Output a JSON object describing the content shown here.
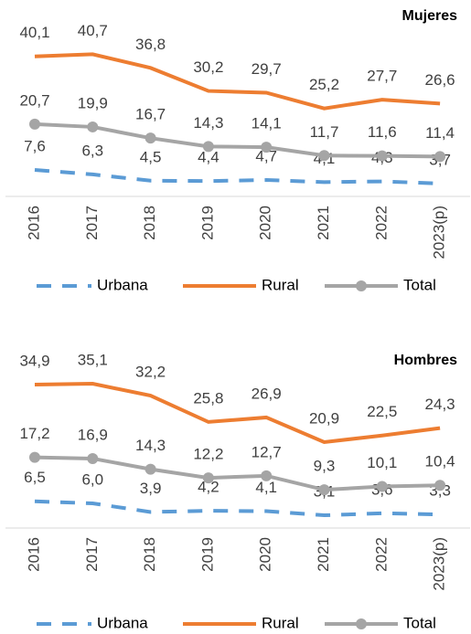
{
  "chart_data": [
    {
      "type": "line",
      "title": "Mujeres",
      "categories": [
        "2016",
        "2017",
        "2018",
        "2019",
        "2020",
        "2021",
        "2022",
        "2023(p)"
      ],
      "ylim": [
        0,
        45
      ],
      "legend": "bottom",
      "series": [
        {
          "name": "Urbana",
          "color": "#5b9bd5",
          "dashed": true,
          "values": [
            7.6,
            6.3,
            4.5,
            4.4,
            4.7,
            4.1,
            4.3,
            3.7
          ],
          "value_labels": [
            "7,6",
            "6,3",
            "4,5",
            "4,4",
            "4,7",
            "4,1",
            "4,3",
            "3,7"
          ]
        },
        {
          "name": "Rural",
          "color": "#ed7d31",
          "values": [
            40.1,
            40.7,
            36.8,
            30.2,
            29.7,
            25.2,
            27.7,
            26.6
          ],
          "value_labels": [
            "40,1",
            "40,7",
            "36,8",
            "30,2",
            "29,7",
            "25,2",
            "27,7",
            "26,6"
          ]
        },
        {
          "name": "Total",
          "color": "#a5a5a5",
          "markers": true,
          "values": [
            20.7,
            19.9,
            16.7,
            14.3,
            14.1,
            11.7,
            11.6,
            11.4
          ],
          "value_labels": [
            "20,7",
            "19,9",
            "16,7",
            "14,3",
            "14,1",
            "11,7",
            "11,6",
            "11,4"
          ]
        }
      ]
    },
    {
      "type": "line",
      "title": "Hombres",
      "categories": [
        "2016",
        "2017",
        "2018",
        "2019",
        "2020",
        "2021",
        "2022",
        "2023(p)"
      ],
      "ylim": [
        0,
        40
      ],
      "legend": "bottom",
      "series": [
        {
          "name": "Urbana",
          "color": "#5b9bd5",
          "dashed": true,
          "values": [
            6.5,
            6.0,
            3.9,
            4.2,
            4.1,
            3.1,
            3.6,
            3.3
          ],
          "value_labels": [
            "6,5",
            "6,0",
            "3,9",
            "4,2",
            "4,1",
            "3,1",
            "3,6",
            "3,3"
          ]
        },
        {
          "name": "Rural",
          "color": "#ed7d31",
          "values": [
            34.9,
            35.1,
            32.2,
            25.8,
            26.9,
            20.9,
            22.5,
            24.3
          ],
          "value_labels": [
            "34,9",
            "35,1",
            "32,2",
            "25,8",
            "26,9",
            "20,9",
            "22,5",
            "24,3"
          ]
        },
        {
          "name": "Total",
          "color": "#a5a5a5",
          "markers": true,
          "values": [
            17.2,
            16.9,
            14.3,
            12.2,
            12.7,
            9.3,
            10.1,
            10.4
          ],
          "value_labels": [
            "17,2",
            "16,9",
            "14,3",
            "12,2",
            "12,7",
            "9,3",
            "10,1",
            "10,4"
          ]
        }
      ]
    }
  ]
}
